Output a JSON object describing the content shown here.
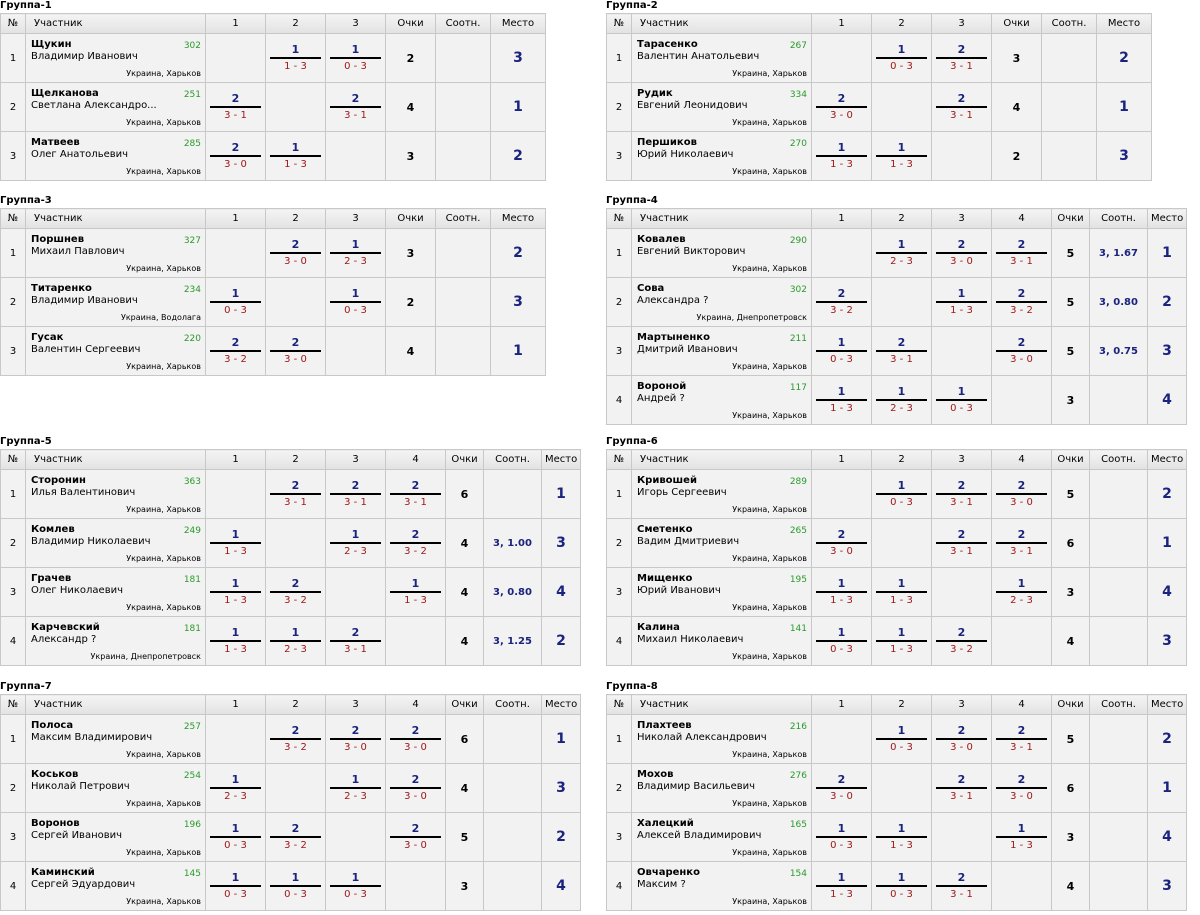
{
  "headers": {
    "no": "№",
    "participant": "Участник",
    "points": "Очки",
    "ratio": "Соотн.",
    "place": "Место"
  },
  "groups": [
    {
      "title": "Группа-1",
      "players": [
        {
          "no": "1",
          "name": "Щукин",
          "full": "Владимир Иванович",
          "rating": "302",
          "city": "Украина, Харьков",
          "scores": [
            null,
            {
              "p": "1",
              "s": "1 - 3"
            },
            {
              "p": "1",
              "s": "0 - 3"
            }
          ],
          "points": "2",
          "ratio": "",
          "place": "3"
        },
        {
          "no": "2",
          "name": "Щелканова",
          "full": "Светлана Александро...",
          "rating": "251",
          "city": "Украина, Харьков",
          "scores": [
            {
              "p": "2",
              "s": "3 - 1"
            },
            null,
            {
              "p": "2",
              "s": "3 - 1"
            }
          ],
          "points": "4",
          "ratio": "",
          "place": "1"
        },
        {
          "no": "3",
          "name": "Матвеев",
          "full": "Олег Анатольевич",
          "rating": "285",
          "city": "Украина, Харьков",
          "scores": [
            {
              "p": "2",
              "s": "3 - 0"
            },
            {
              "p": "1",
              "s": "1 - 3"
            },
            null
          ],
          "points": "3",
          "ratio": "",
          "place": "2"
        }
      ]
    },
    {
      "title": "Группа-2",
      "players": [
        {
          "no": "1",
          "name": "Тарасенко",
          "full": "Валентин Анатольевич",
          "rating": "267",
          "city": "Украина, Харьков",
          "scores": [
            null,
            {
              "p": "1",
              "s": "0 - 3"
            },
            {
              "p": "2",
              "s": "3 - 1"
            }
          ],
          "points": "3",
          "ratio": "",
          "place": "2"
        },
        {
          "no": "2",
          "name": "Рудик",
          "full": "Евгений Леонидович",
          "rating": "334",
          "city": "Украина, Харьков",
          "scores": [
            {
              "p": "2",
              "s": "3 - 0"
            },
            null,
            {
              "p": "2",
              "s": "3 - 1"
            }
          ],
          "points": "4",
          "ratio": "",
          "place": "1"
        },
        {
          "no": "3",
          "name": "Першиков",
          "full": "Юрий Николаевич",
          "rating": "270",
          "city": "Украина, Харьков",
          "scores": [
            {
              "p": "1",
              "s": "1 - 3"
            },
            {
              "p": "1",
              "s": "1 - 3"
            },
            null
          ],
          "points": "2",
          "ratio": "",
          "place": "3"
        }
      ]
    },
    {
      "title": "Группа-3",
      "players": [
        {
          "no": "1",
          "name": "Поршнев",
          "full": "Михаил Павлович",
          "rating": "327",
          "city": "Украина, Харьков",
          "scores": [
            null,
            {
              "p": "2",
              "s": "3 - 0"
            },
            {
              "p": "1",
              "s": "2 - 3"
            }
          ],
          "points": "3",
          "ratio": "",
          "place": "2"
        },
        {
          "no": "2",
          "name": "Титаренко",
          "full": "Владимир Иванович",
          "rating": "234",
          "city": "Украина, Водолага",
          "scores": [
            {
              "p": "1",
              "s": "0 - 3"
            },
            null,
            {
              "p": "1",
              "s": "0 - 3"
            }
          ],
          "points": "2",
          "ratio": "",
          "place": "3"
        },
        {
          "no": "3",
          "name": "Гусак",
          "full": "Валентин Сергеевич",
          "rating": "220",
          "city": "Украина, Харьков",
          "scores": [
            {
              "p": "2",
              "s": "3 - 2"
            },
            {
              "p": "2",
              "s": "3 - 0"
            },
            null
          ],
          "points": "4",
          "ratio": "",
          "place": "1"
        }
      ]
    },
    {
      "title": "Группа-4",
      "players": [
        {
          "no": "1",
          "name": "Ковалев",
          "full": "Евгений Викторович",
          "rating": "290",
          "city": "Украина, Харьков",
          "scores": [
            null,
            {
              "p": "1",
              "s": "2 - 3"
            },
            {
              "p": "2",
              "s": "3 - 0"
            },
            {
              "p": "2",
              "s": "3 - 1"
            }
          ],
          "points": "5",
          "ratio": "3, 1.67",
          "place": "1"
        },
        {
          "no": "2",
          "name": "Сова",
          "full": "Александра ?",
          "rating": "302",
          "city": "Украина, Днепропетровск",
          "scores": [
            {
              "p": "2",
              "s": "3 - 2"
            },
            null,
            {
              "p": "1",
              "s": "1 - 3"
            },
            {
              "p": "2",
              "s": "3 - 2"
            }
          ],
          "points": "5",
          "ratio": "3, 0.80",
          "place": "2"
        },
        {
          "no": "3",
          "name": "Мартыненко",
          "full": "Дмитрий Иванович",
          "rating": "211",
          "city": "Украина, Харьков",
          "scores": [
            {
              "p": "1",
              "s": "0 - 3"
            },
            {
              "p": "2",
              "s": "3 - 1"
            },
            null,
            {
              "p": "2",
              "s": "3 - 0"
            }
          ],
          "points": "5",
          "ratio": "3, 0.75",
          "place": "3"
        },
        {
          "no": "4",
          "name": "Вороной",
          "full": "Андрей ?",
          "rating": "117",
          "city": "Украина, Харьков",
          "scores": [
            {
              "p": "1",
              "s": "1 - 3"
            },
            {
              "p": "1",
              "s": "2 - 3"
            },
            {
              "p": "1",
              "s": "0 - 3"
            },
            null
          ],
          "points": "3",
          "ratio": "",
          "place": "4"
        }
      ]
    },
    {
      "title": "Группа-5",
      "players": [
        {
          "no": "1",
          "name": "Сторонин",
          "full": "Илья Валентинович",
          "rating": "363",
          "city": "Украина, Харьков",
          "scores": [
            null,
            {
              "p": "2",
              "s": "3 - 1"
            },
            {
              "p": "2",
              "s": "3 - 1"
            },
            {
              "p": "2",
              "s": "3 - 1"
            }
          ],
          "points": "6",
          "ratio": "",
          "place": "1"
        },
        {
          "no": "2",
          "name": "Комлев",
          "full": "Владимир Николаевич",
          "rating": "249",
          "city": "Украина, Харьков",
          "scores": [
            {
              "p": "1",
              "s": "1 - 3"
            },
            null,
            {
              "p": "1",
              "s": "2 - 3"
            },
            {
              "p": "2",
              "s": "3 - 2"
            }
          ],
          "points": "4",
          "ratio": "3, 1.00",
          "place": "3"
        },
        {
          "no": "3",
          "name": "Грачев",
          "full": "Олег Николаевич",
          "rating": "181",
          "city": "Украина, Харьков",
          "scores": [
            {
              "p": "1",
              "s": "1 - 3"
            },
            {
              "p": "2",
              "s": "3 - 2"
            },
            null,
            {
              "p": "1",
              "s": "1 - 3"
            }
          ],
          "points": "4",
          "ratio": "3, 0.80",
          "place": "4"
        },
        {
          "no": "4",
          "name": "Карчевский",
          "full": "Александр ?",
          "rating": "181",
          "city": "Украина, Днепропетровск",
          "scores": [
            {
              "p": "1",
              "s": "1 - 3"
            },
            {
              "p": "1",
              "s": "2 - 3"
            },
            {
              "p": "2",
              "s": "3 - 1"
            },
            null
          ],
          "points": "4",
          "ratio": "3, 1.25",
          "place": "2"
        }
      ]
    },
    {
      "title": "Группа-6",
      "players": [
        {
          "no": "1",
          "name": "Кривошей",
          "full": "Игорь Сергеевич",
          "rating": "289",
          "city": "Украина, Харьков",
          "scores": [
            null,
            {
              "p": "1",
              "s": "0 - 3"
            },
            {
              "p": "2",
              "s": "3 - 1"
            },
            {
              "p": "2",
              "s": "3 - 0"
            }
          ],
          "points": "5",
          "ratio": "",
          "place": "2"
        },
        {
          "no": "2",
          "name": "Сметенко",
          "full": "Вадим Дмитриевич",
          "rating": "265",
          "city": "Украина, Харьков",
          "scores": [
            {
              "p": "2",
              "s": "3 - 0"
            },
            null,
            {
              "p": "2",
              "s": "3 - 1"
            },
            {
              "p": "2",
              "s": "3 - 1"
            }
          ],
          "points": "6",
          "ratio": "",
          "place": "1"
        },
        {
          "no": "3",
          "name": "Мищенко",
          "full": "Юрий Иванович",
          "rating": "195",
          "city": "Украина, Харьков",
          "scores": [
            {
              "p": "1",
              "s": "1 - 3"
            },
            {
              "p": "1",
              "s": "1 - 3"
            },
            null,
            {
              "p": "1",
              "s": "2 - 3"
            }
          ],
          "points": "3",
          "ratio": "",
          "place": "4"
        },
        {
          "no": "4",
          "name": "Калина",
          "full": "Михаил Николаевич",
          "rating": "141",
          "city": "Украина, Харьков",
          "scores": [
            {
              "p": "1",
              "s": "0 - 3"
            },
            {
              "p": "1",
              "s": "1 - 3"
            },
            {
              "p": "2",
              "s": "3 - 2"
            },
            null
          ],
          "points": "4",
          "ratio": "",
          "place": "3"
        }
      ]
    },
    {
      "title": "Группа-7",
      "players": [
        {
          "no": "1",
          "name": "Полоса",
          "full": "Максим Владимирович",
          "rating": "257",
          "city": "Украина, Харьков",
          "scores": [
            null,
            {
              "p": "2",
              "s": "3 - 2"
            },
            {
              "p": "2",
              "s": "3 - 0"
            },
            {
              "p": "2",
              "s": "3 - 0"
            }
          ],
          "points": "6",
          "ratio": "",
          "place": "1"
        },
        {
          "no": "2",
          "name": "Коськов",
          "full": "Николай Петрович",
          "rating": "254",
          "city": "Украина, Харьков",
          "scores": [
            {
              "p": "1",
              "s": "2 - 3"
            },
            null,
            {
              "p": "1",
              "s": "2 - 3"
            },
            {
              "p": "2",
              "s": "3 - 0"
            }
          ],
          "points": "4",
          "ratio": "",
          "place": "3"
        },
        {
          "no": "3",
          "name": "Воронов",
          "full": "Сергей Иванович",
          "rating": "196",
          "city": "Украина, Харьков",
          "scores": [
            {
              "p": "1",
              "s": "0 - 3"
            },
            {
              "p": "2",
              "s": "3 - 2"
            },
            null,
            {
              "p": "2",
              "s": "3 - 0"
            }
          ],
          "points": "5",
          "ratio": "",
          "place": "2"
        },
        {
          "no": "4",
          "name": "Каминский",
          "full": "Сергей Эдуардович",
          "rating": "145",
          "city": "Украина, Харьков",
          "scores": [
            {
              "p": "1",
              "s": "0 - 3"
            },
            {
              "p": "1",
              "s": "0 - 3"
            },
            {
              "p": "1",
              "s": "0 - 3"
            },
            null
          ],
          "points": "3",
          "ratio": "",
          "place": "4"
        }
      ]
    },
    {
      "title": "Группа-8",
      "players": [
        {
          "no": "1",
          "name": "Плахтеев",
          "full": "Николай Александрович",
          "rating": "216",
          "city": "Украина, Харьков",
          "scores": [
            null,
            {
              "p": "1",
              "s": "0 - 3"
            },
            {
              "p": "2",
              "s": "3 - 0"
            },
            {
              "p": "2",
              "s": "3 - 1"
            }
          ],
          "points": "5",
          "ratio": "",
          "place": "2"
        },
        {
          "no": "2",
          "name": "Мохов",
          "full": "Владимир Васильевич",
          "rating": "276",
          "city": "Украина, Харьков",
          "scores": [
            {
              "p": "2",
              "s": "3 - 0"
            },
            null,
            {
              "p": "2",
              "s": "3 - 1"
            },
            {
              "p": "2",
              "s": "3 - 0"
            }
          ],
          "points": "6",
          "ratio": "",
          "place": "1"
        },
        {
          "no": "3",
          "name": "Халецкий",
          "full": "Алексей Владимирович",
          "rating": "165",
          "city": "Украина, Харьков",
          "scores": [
            {
              "p": "1",
              "s": "0 - 3"
            },
            {
              "p": "1",
              "s": "1 - 3"
            },
            null,
            {
              "p": "1",
              "s": "1 - 3"
            }
          ],
          "points": "3",
          "ratio": "",
          "place": "4"
        },
        {
          "no": "4",
          "name": "Овчаренко",
          "full": "Максим ?",
          "rating": "154",
          "city": "Украина, Харьков",
          "scores": [
            {
              "p": "1",
              "s": "1 - 3"
            },
            {
              "p": "1",
              "s": "0 - 3"
            },
            {
              "p": "2",
              "s": "3 - 1"
            },
            null
          ],
          "points": "4",
          "ratio": "",
          "place": "3"
        }
      ]
    }
  ]
}
